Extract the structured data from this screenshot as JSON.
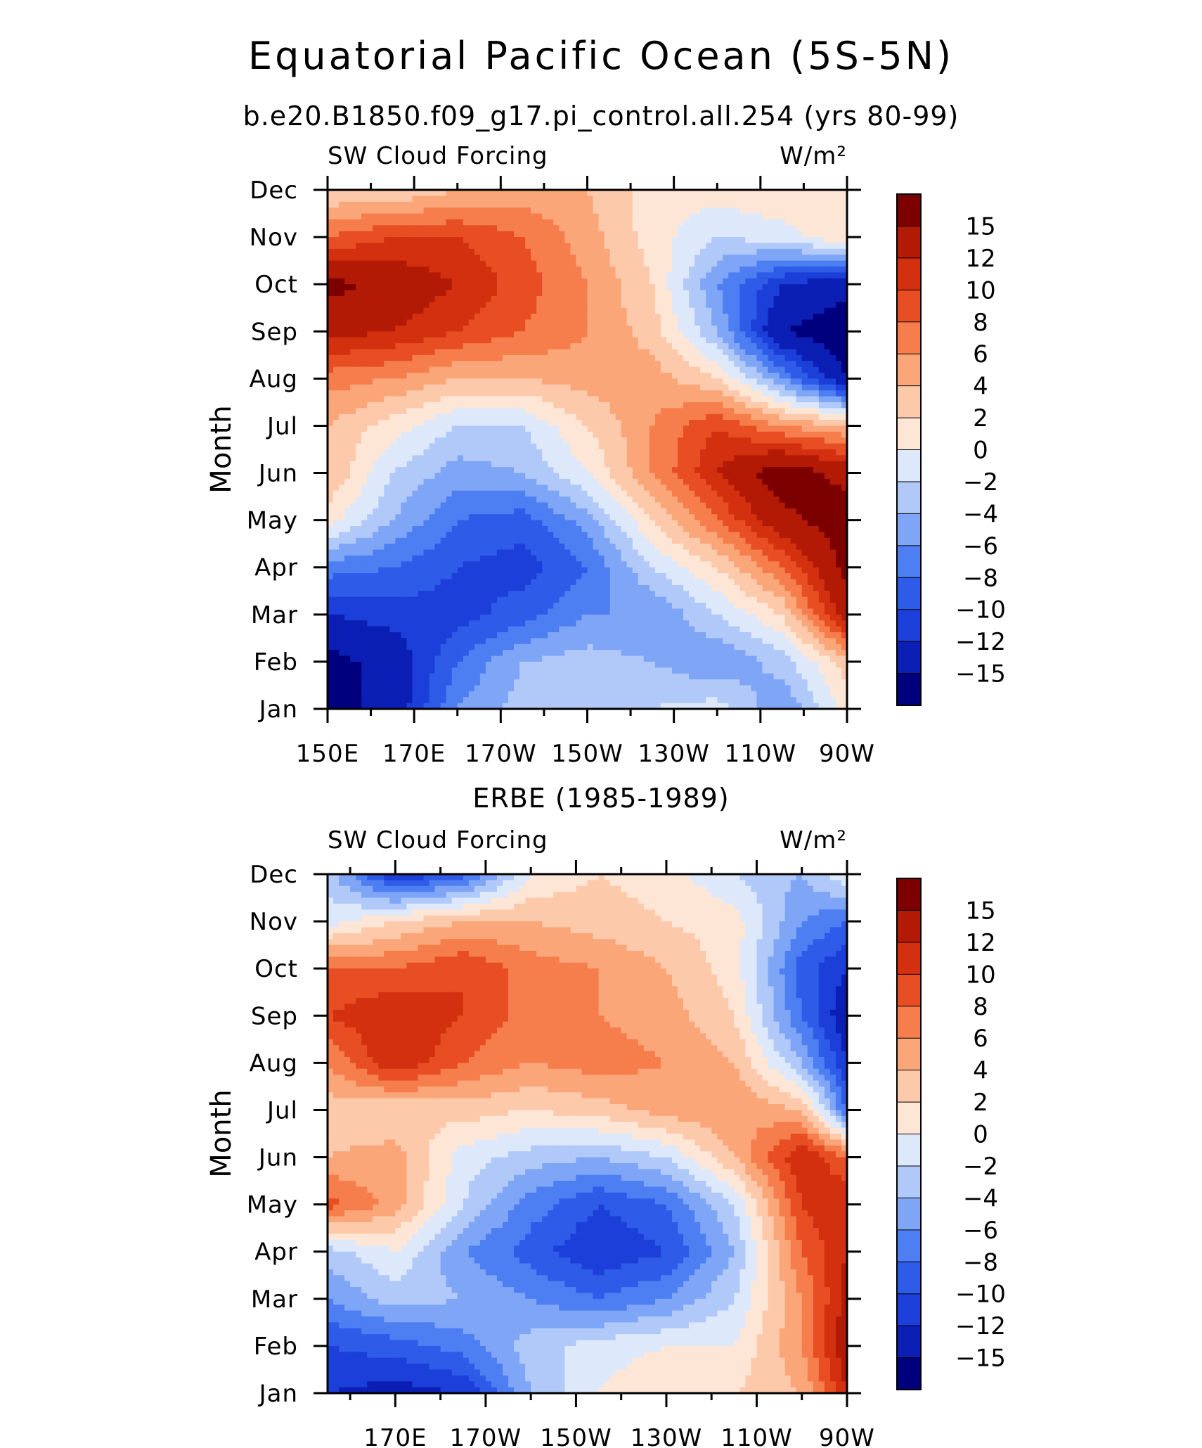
{
  "page": {
    "title": "Equatorial Pacific Ocean (5S-5N)",
    "subtitle": "b.e20.B1850.f09_g17.pi_control.all.254 (yrs 80-99)",
    "second_panel_title": "ERBE (1985-1989)"
  },
  "chart_data": [
    {
      "type": "heatmap",
      "title": "b.e20.B1850.f09_g17.pi_control.all.254 (yrs 80-99)",
      "left_label": "SW Cloud Forcing",
      "units": "W/m²",
      "xlabel": "",
      "ylabel": "Month",
      "x_ticks": [
        "150E",
        "170E",
        "170W",
        "150W",
        "130W",
        "110W",
        "90W"
      ],
      "x_tick_lon": [
        150,
        170,
        190,
        210,
        230,
        250,
        270
      ],
      "y_ticks": [
        "Jan",
        "Feb",
        "Mar",
        "Apr",
        "May",
        "Jun",
        "Jul",
        "Aug",
        "Sep",
        "Oct",
        "Nov",
        "Dec"
      ],
      "xlim": [
        150,
        270
      ],
      "ylim": [
        1,
        12
      ],
      "colorbar_levels": [
        -15,
        -12,
        -10,
        -8,
        -6,
        -4,
        -2,
        0,
        2,
        4,
        6,
        8,
        10,
        12,
        15
      ],
      "colorbar_labels": [
        "15",
        "12",
        "10",
        "8",
        "6",
        "4",
        "2",
        "0",
        "−2",
        "−4",
        "−6",
        "−8",
        "−10",
        "−12",
        "−15"
      ],
      "colors": [
        "#00007f",
        "#0b1fb5",
        "#1c3fd9",
        "#2e5be8",
        "#4d7ef2",
        "#7ea5f6",
        "#b0c9f9",
        "#dde8fb",
        "#fde6d6",
        "#fdc9ab",
        "#fba679",
        "#f67d4c",
        "#e84e23",
        "#d33010",
        "#b21a06",
        "#7d0000"
      ],
      "grid_lon": [
        150,
        165,
        180,
        195,
        210,
        225,
        240,
        255,
        270
      ],
      "grid_month": [
        1,
        2,
        3,
        4,
        5,
        6,
        7,
        8,
        9,
        10,
        11,
        12
      ],
      "values": [
        [
          -16,
          -14,
          -6,
          -3,
          -3,
          -2,
          -1,
          -6,
          1
        ],
        [
          -16,
          -14,
          -8,
          -4,
          -3,
          -4,
          -6,
          -3,
          3
        ],
        [
          -12,
          -11,
          -11,
          -9,
          -6,
          -6,
          -2,
          2,
          14
        ],
        [
          -7,
          -8,
          -10,
          -11,
          -8,
          -2,
          2,
          8,
          16
        ],
        [
          1,
          -4,
          -8,
          -9,
          -5,
          2,
          8,
          14,
          17
        ],
        [
          4,
          -2,
          -5,
          -4,
          0,
          6,
          12,
          17,
          14
        ],
        [
          4,
          1,
          -2,
          -2,
          2,
          6,
          10,
          6,
          4
        ],
        [
          7,
          6,
          4,
          4,
          5,
          5,
          2,
          -6,
          -15
        ],
        [
          13,
          12,
          10,
          8,
          6,
          3,
          -4,
          -15,
          -17
        ],
        [
          16,
          14,
          12,
          9,
          6,
          2,
          -6,
          -12,
          -14
        ],
        [
          8,
          10,
          10,
          8,
          5,
          1,
          -2,
          -1,
          2
        ],
        [
          2,
          2,
          4,
          5,
          4,
          1,
          1,
          2,
          2
        ]
      ]
    },
    {
      "type": "heatmap",
      "title": "ERBE (1985-1989)",
      "left_label": "SW Cloud Forcing",
      "units": "W/m²",
      "xlabel": "",
      "ylabel": "Month",
      "x_ticks": [
        "170E",
        "170W",
        "150W",
        "130W",
        "110W",
        "90W"
      ],
      "x_tick_lon": [
        170,
        190,
        210,
        230,
        250,
        270
      ],
      "y_ticks": [
        "Jan",
        "Feb",
        "Mar",
        "Apr",
        "May",
        "Jun",
        "Jul",
        "Aug",
        "Sep",
        "Oct",
        "Nov",
        "Dec"
      ],
      "xlim": [
        155,
        270
      ],
      "ylim": [
        1,
        12
      ],
      "colorbar_levels": [
        -15,
        -12,
        -10,
        -8,
        -6,
        -4,
        -2,
        0,
        2,
        4,
        6,
        8,
        10,
        12,
        15
      ],
      "colorbar_labels": [
        "15",
        "12",
        "10",
        "8",
        "6",
        "4",
        "2",
        "0",
        "−2",
        "−4",
        "−6",
        "−8",
        "−10",
        "−12",
        "−15"
      ],
      "colors": [
        "#00007f",
        "#0b1fb5",
        "#1c3fd9",
        "#2e5be8",
        "#4d7ef2",
        "#7ea5f6",
        "#b0c9f9",
        "#dde8fb",
        "#fde6d6",
        "#fdc9ab",
        "#fba679",
        "#f67d4c",
        "#e84e23",
        "#d33010",
        "#b21a06",
        "#7d0000"
      ],
      "grid_lon": [
        155,
        170,
        185,
        200,
        215,
        230,
        245,
        260,
        270
      ],
      "grid_month": [
        1,
        2,
        3,
        4,
        5,
        6,
        7,
        8,
        9,
        10,
        11,
        12
      ],
      "values": [
        [
          -12,
          -13,
          -12,
          -4,
          0,
          2,
          2,
          4,
          12
        ],
        [
          -10,
          -9,
          -7,
          -3,
          -1,
          0,
          0,
          6,
          14
        ],
        [
          -6,
          -3,
          -4,
          -6,
          -8,
          -6,
          -2,
          6,
          13
        ],
        [
          -3,
          0,
          -6,
          -9,
          -12,
          -10,
          -4,
          8,
          12
        ],
        [
          9,
          5,
          -2,
          -7,
          -10,
          -8,
          -2,
          10,
          12
        ],
        [
          4,
          5,
          -1,
          -3,
          -4,
          -2,
          4,
          12,
          8
        ],
        [
          3,
          2,
          3,
          2,
          3,
          5,
          6,
          4,
          -8
        ],
        [
          6,
          12,
          8,
          6,
          7,
          6,
          4,
          -4,
          -12
        ],
        [
          10,
          12,
          10,
          7,
          6,
          5,
          2,
          -8,
          -14
        ],
        [
          8,
          8,
          10,
          7,
          6,
          4,
          1,
          -9,
          -12
        ],
        [
          -1,
          2,
          4,
          4,
          3,
          2,
          1,
          -6,
          -8
        ],
        [
          -3,
          -12,
          -9,
          0,
          2,
          1,
          -2,
          -4,
          0
        ]
      ]
    }
  ]
}
